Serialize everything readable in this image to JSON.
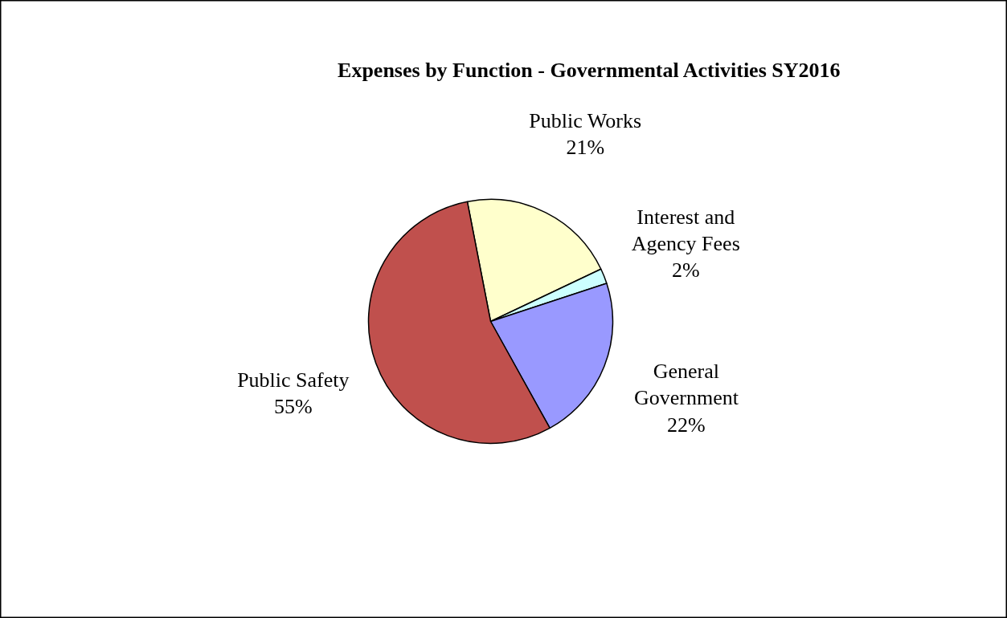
{
  "chart_data": {
    "type": "pie",
    "title": "Expenses by Function - Governmental Activities SY2016",
    "categories": [
      "Public Works",
      "Interest and Agency Fees",
      "General Government",
      "Public Safety"
    ],
    "values": [
      21,
      2,
      22,
      55
    ],
    "colors": [
      "#ffffcc",
      "#ccffff",
      "#9999ff",
      "#c0504d"
    ],
    "value_labels": [
      "21%",
      "2%",
      "22%",
      "55%"
    ]
  }
}
